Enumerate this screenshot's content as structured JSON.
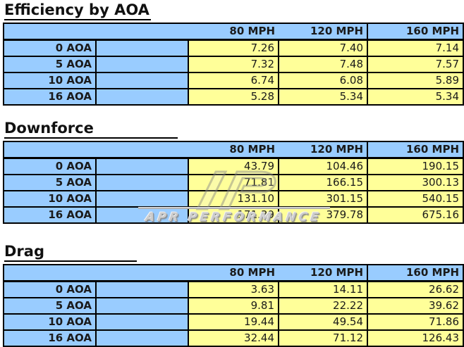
{
  "page": {
    "background": "#ffffff"
  },
  "colors": {
    "header_blue": "#99CCFF",
    "cell_yellow": "#FFFF99",
    "border_black": "#000000",
    "watermark_gray": "#c8c8c8"
  },
  "watermark": {
    "text": "APR PERFORMANCE",
    "logo_icon": "apr-logo-icon"
  },
  "tables": [
    {
      "title": "Efficiency by AOA",
      "columns": [
        "80 MPH",
        "120 MPH",
        "160 MPH"
      ],
      "rows": [
        {
          "label": "0 AOA",
          "values": [
            "7.26",
            "7.40",
            "7.14"
          ]
        },
        {
          "label": "5 AOA",
          "values": [
            "7.32",
            "7.48",
            "7.57"
          ]
        },
        {
          "label": "10 AOA",
          "values": [
            "6.74",
            "6.08",
            "5.89"
          ]
        },
        {
          "label": "16 AOA",
          "values": [
            "5.28",
            "5.34",
            "5.34"
          ]
        }
      ]
    },
    {
      "title": "Downforce",
      "columns": [
        "80 MPH",
        "120 MPH",
        "160 MPH"
      ],
      "rows": [
        {
          "label": "0 AOA",
          "values": [
            "43.79",
            "104.46",
            "190.15"
          ]
        },
        {
          "label": "5 AOA",
          "values": [
            "71.81",
            "166.15",
            "300.13"
          ]
        },
        {
          "label": "10 AOA",
          "values": [
            "131.10",
            "301.15",
            "540.15"
          ]
        },
        {
          "label": "16 AOA",
          "values": [
            "171.39",
            "379.78",
            "675.16"
          ]
        }
      ]
    },
    {
      "title": "Drag",
      "columns": [
        "80 MPH",
        "120 MPH",
        "160 MPH"
      ],
      "rows": [
        {
          "label": "0 AOA",
          "values": [
            "3.63",
            "14.11",
            "26.62"
          ]
        },
        {
          "label": "5 AOA",
          "values": [
            "9.81",
            "22.22",
            "39.62"
          ]
        },
        {
          "label": "10 AOA",
          "values": [
            "19.44",
            "49.54",
            "71.86"
          ]
        },
        {
          "label": "16 AOA",
          "values": [
            "32.44",
            "71.12",
            "126.43"
          ]
        }
      ]
    }
  ],
  "chart_data": [
    {
      "type": "table",
      "title": "Efficiency by AOA",
      "categories": [
        "0 AOA",
        "5 AOA",
        "10 AOA",
        "16 AOA"
      ],
      "series": [
        {
          "name": "80 MPH",
          "values": [
            7.26,
            7.32,
            6.74,
            5.28
          ]
        },
        {
          "name": "120 MPH",
          "values": [
            7.4,
            7.48,
            6.08,
            5.34
          ]
        },
        {
          "name": "160 MPH",
          "values": [
            7.14,
            7.57,
            5.89,
            5.34
          ]
        }
      ]
    },
    {
      "type": "table",
      "title": "Downforce",
      "categories": [
        "0 AOA",
        "5 AOA",
        "10 AOA",
        "16 AOA"
      ],
      "series": [
        {
          "name": "80 MPH",
          "values": [
            43.79,
            71.81,
            131.1,
            171.39
          ]
        },
        {
          "name": "120 MPH",
          "values": [
            104.46,
            166.15,
            301.15,
            379.78
          ]
        },
        {
          "name": "160 MPH",
          "values": [
            190.15,
            300.13,
            540.15,
            675.16
          ]
        }
      ]
    },
    {
      "type": "table",
      "title": "Drag",
      "categories": [
        "0 AOA",
        "5 AOA",
        "10 AOA",
        "16 AOA"
      ],
      "series": [
        {
          "name": "80 MPH",
          "values": [
            3.63,
            9.81,
            19.44,
            32.44
          ]
        },
        {
          "name": "120 MPH",
          "values": [
            14.11,
            22.22,
            49.54,
            71.12
          ]
        },
        {
          "name": "160 MPH",
          "values": [
            26.62,
            39.62,
            71.86,
            126.43
          ]
        }
      ]
    }
  ]
}
